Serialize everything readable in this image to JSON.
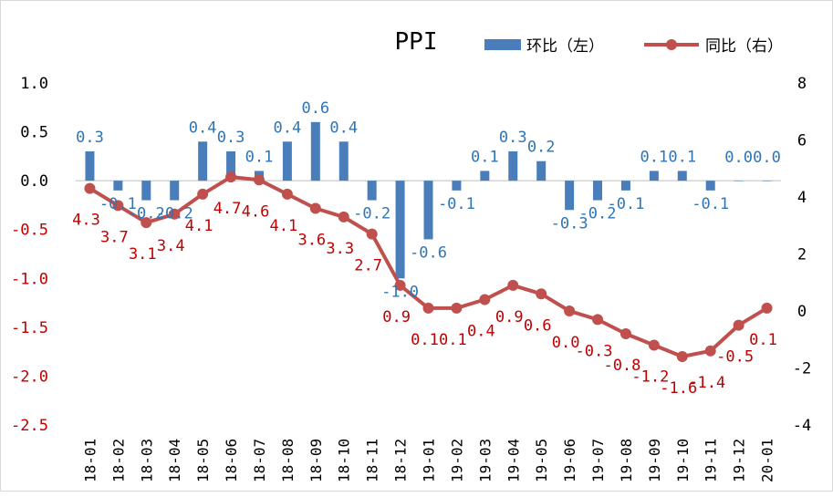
{
  "chart_data": {
    "type": "bar+line",
    "title": "PPI",
    "categories": [
      "18-01",
      "18-02",
      "18-03",
      "18-04",
      "18-05",
      "18-06",
      "18-07",
      "18-08",
      "18-09",
      "18-10",
      "18-11",
      "18-12",
      "19-01",
      "19-02",
      "19-03",
      "19-04",
      "19-05",
      "19-06",
      "19-07",
      "19-08",
      "19-09",
      "19-10",
      "19-11",
      "19-12",
      "20-01"
    ],
    "series": [
      {
        "name": "环比（左）",
        "type": "bar",
        "axis": "left",
        "color": "#4a7ebb",
        "label_color": "#2e75b6",
        "values": [
          0.3,
          -0.1,
          -0.2,
          -0.2,
          0.4,
          0.3,
          0.1,
          0.4,
          0.6,
          0.4,
          -0.2,
          -1.0,
          -0.6,
          -0.1,
          0.1,
          0.3,
          0.2,
          -0.3,
          -0.2,
          -0.1,
          0.1,
          0.1,
          -0.1,
          0.0,
          0.0
        ],
        "labels": [
          "0.3",
          "-0.1",
          "-0.2",
          "-0.2",
          "0.4",
          "0.3",
          "0.1",
          "0.4",
          "0.6",
          "0.4",
          "-0.2",
          "-1.0",
          "-0.6",
          "-0.1",
          "0.1",
          "0.3",
          "0.2",
          "-0.3",
          "-0.2",
          "-0.1",
          "0.1",
          "0.1",
          "-0.1",
          "0.0",
          "0.0"
        ]
      },
      {
        "name": "同比（右）",
        "type": "line",
        "axis": "right",
        "color": "#c0504d",
        "label_color": "#c00000",
        "values": [
          4.3,
          3.7,
          3.1,
          3.4,
          4.1,
          4.7,
          4.6,
          4.1,
          3.6,
          3.3,
          2.7,
          0.9,
          0.1,
          0.1,
          0.4,
          0.9,
          0.6,
          0.0,
          -0.3,
          -0.8,
          -1.2,
          -1.6,
          -1.4,
          -0.5,
          0.1
        ],
        "labels": [
          "4.3",
          "3.7",
          "3.1",
          "3.4",
          "4.1",
          "4.7",
          "4.6",
          "4.1",
          "3.6",
          "3.3",
          "2.7",
          "0.9",
          "0.1",
          "0.1",
          "0.4",
          "0.9",
          "0.6",
          "0.0",
          "-0.3",
          "-0.8",
          "-1.2",
          "-1.6",
          "-1.4",
          "-0.5",
          "0.1"
        ]
      }
    ],
    "y_left": {
      "range": [
        -2.5,
        1.0
      ],
      "ticks": [
        "1.0",
        "0.5",
        "0.0",
        "-0.5",
        "-1.0",
        "-1.5",
        "-2.0",
        "-2.5"
      ],
      "tick_values": [
        1.0,
        0.5,
        0.0,
        -0.5,
        -1.0,
        -1.5,
        -2.0,
        -2.5
      ],
      "positive_color": "#000000",
      "negative_color": "#c00000"
    },
    "y_right": {
      "range": [
        -4,
        8
      ],
      "ticks": [
        "8",
        "6",
        "4",
        "2",
        "0",
        "-2",
        "-4"
      ],
      "tick_values": [
        8,
        6,
        4,
        2,
        0,
        -2,
        -4
      ]
    },
    "grid": false,
    "legend_position": "top-right"
  }
}
